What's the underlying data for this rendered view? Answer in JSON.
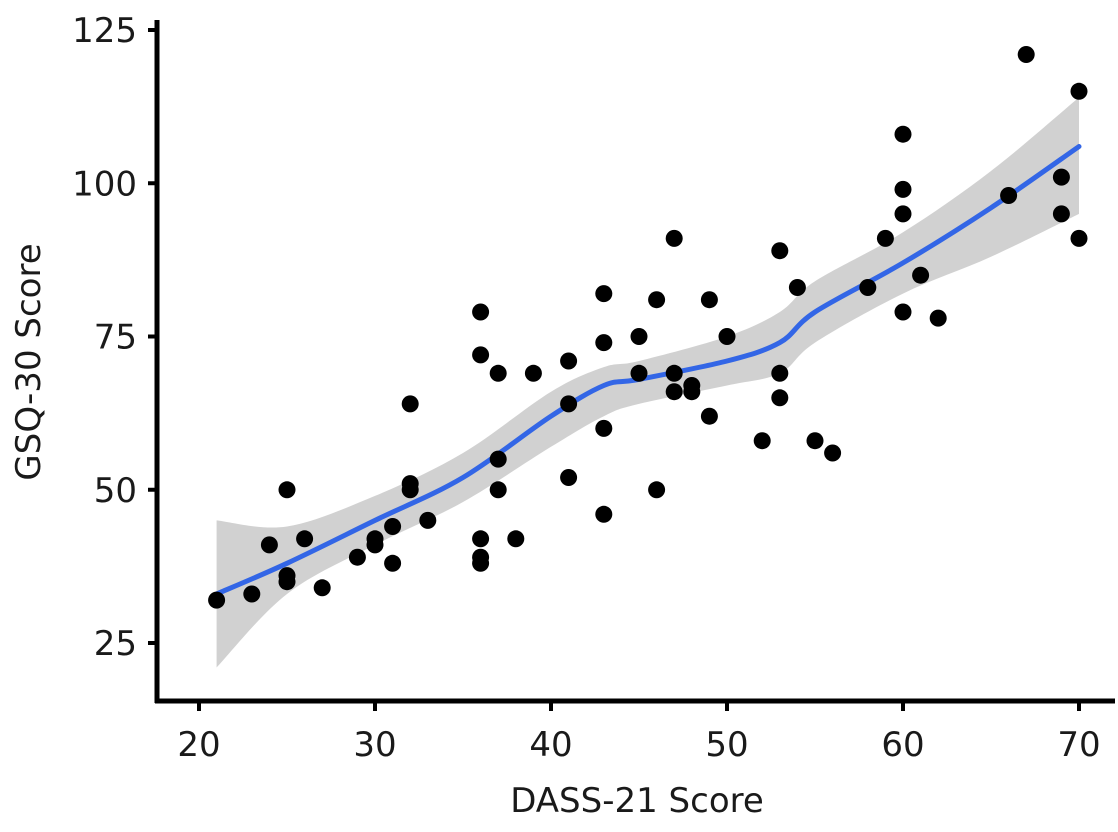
{
  "chart_data": {
    "type": "scatter",
    "title": "",
    "xlabel": "DASS-21 Score",
    "ylabel": "GSQ-30 Score",
    "xlim": [
      19,
      71
    ],
    "ylim": [
      15,
      126
    ],
    "x_ticks": [
      20,
      30,
      40,
      50,
      60,
      70
    ],
    "y_ticks": [
      25,
      50,
      75,
      100,
      125
    ],
    "x_tick_labels": [
      "20",
      "30",
      "40",
      "50",
      "60",
      "70"
    ],
    "y_tick_labels": [
      "25",
      "50",
      "75",
      "100",
      "125"
    ],
    "grid": false,
    "legend": "none",
    "colors": {
      "points": "#000000",
      "smooth_line": "#3366e6",
      "confidence_band": "#cccccc"
    },
    "series": [
      {
        "type": "scatter",
        "points": [
          [
            21,
            32
          ],
          [
            23,
            33
          ],
          [
            24,
            41
          ],
          [
            25,
            50
          ],
          [
            25,
            36
          ],
          [
            25,
            35
          ],
          [
            26,
            42
          ],
          [
            27,
            34
          ],
          [
            29,
            39
          ],
          [
            30,
            42
          ],
          [
            30,
            41
          ],
          [
            31,
            44
          ],
          [
            31,
            38
          ],
          [
            32,
            64
          ],
          [
            32,
            51
          ],
          [
            32,
            50
          ],
          [
            33,
            45
          ],
          [
            36,
            79
          ],
          [
            36,
            72
          ],
          [
            36,
            42
          ],
          [
            36,
            39
          ],
          [
            36,
            38
          ],
          [
            37,
            69
          ],
          [
            37,
            55
          ],
          [
            37,
            50
          ],
          [
            38,
            42
          ],
          [
            39,
            69
          ],
          [
            41,
            71
          ],
          [
            41,
            64
          ],
          [
            41,
            52
          ],
          [
            43,
            82
          ],
          [
            43,
            74
          ],
          [
            43,
            60
          ],
          [
            43,
            46
          ],
          [
            45,
            75
          ],
          [
            45,
            69
          ],
          [
            46,
            81
          ],
          [
            46,
            50
          ],
          [
            47,
            91
          ],
          [
            47,
            69
          ],
          [
            47,
            66
          ],
          [
            48,
            67
          ],
          [
            48,
            66
          ],
          [
            49,
            81
          ],
          [
            49,
            62
          ],
          [
            50,
            75
          ],
          [
            52,
            58
          ],
          [
            53,
            89
          ],
          [
            53,
            69
          ],
          [
            53,
            65
          ],
          [
            54,
            83
          ],
          [
            55,
            58
          ],
          [
            56,
            56
          ],
          [
            58,
            83
          ],
          [
            59,
            91
          ],
          [
            60,
            108
          ],
          [
            60,
            99
          ],
          [
            60,
            95
          ],
          [
            60,
            79
          ],
          [
            61,
            85
          ],
          [
            62,
            78
          ],
          [
            66,
            98
          ],
          [
            67,
            121
          ],
          [
            69,
            101
          ],
          [
            69,
            95
          ],
          [
            70,
            115
          ],
          [
            70,
            91
          ]
        ]
      },
      {
        "type": "smooth",
        "x": [
          21,
          25,
          30,
          35,
          40,
          43,
          45,
          50,
          53,
          55,
          60,
          65,
          70
        ],
        "y": [
          33,
          38,
          45,
          52,
          62,
          67,
          68,
          71,
          74,
          79,
          87,
          96,
          106
        ],
        "ci_lower": [
          21,
          33,
          41,
          48,
          57,
          62,
          64,
          67,
          69,
          74,
          82,
          88,
          95
        ],
        "ci_upper": [
          45,
          44,
          49,
          56,
          66,
          70,
          71,
          75,
          79,
          84,
          92,
          102,
          114
        ]
      }
    ]
  }
}
